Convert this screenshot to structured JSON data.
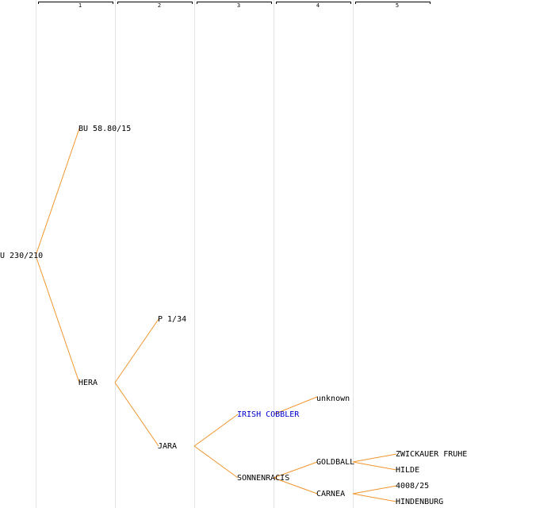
{
  "header": {
    "columns": [
      "1",
      "2",
      "3",
      "4",
      "5"
    ]
  },
  "nodes": [
    {
      "label": "U 230/210"
    },
    {
      "label": "BU 58.80/15"
    },
    {
      "label": "HERA"
    },
    {
      "label": "P 1/34"
    },
    {
      "label": "JARA"
    },
    {
      "label": "IRISH COBBLER"
    },
    {
      "label": "SONNENRACIS"
    },
    {
      "label": "unknown"
    },
    {
      "label": "GOLDBALL"
    },
    {
      "label": "CARNEA"
    },
    {
      "label": "ZWICKAUER FRUHE"
    },
    {
      "label": "HILDE"
    },
    {
      "label": "4008/25"
    },
    {
      "label": "HINDENBURG"
    }
  ]
}
